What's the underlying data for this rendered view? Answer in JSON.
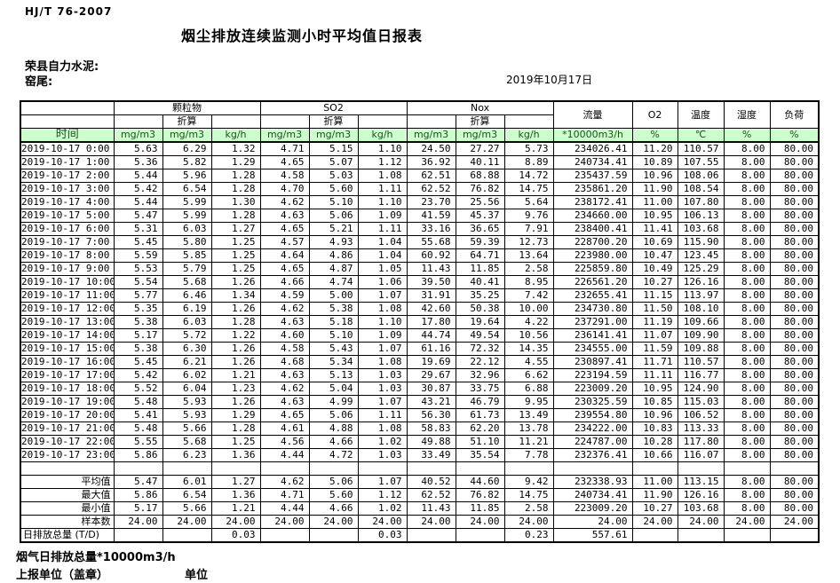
{
  "meta": {
    "standard": "HJ/T  76-2007",
    "title": "烟尘排放连续监测小时平均值日报表",
    "company": "荣县自力水泥:",
    "location": "窑尾:",
    "date": "2019年10月17日"
  },
  "table": {
    "time_label": "时间",
    "converted_label": "折算",
    "groups": [
      "颗粒物",
      "SO2",
      "Nox"
    ],
    "single_cols": [
      "流量",
      "O2",
      "温度",
      "湿度",
      "负荷"
    ],
    "units": [
      "mg/m3",
      "mg/m3",
      "kg/h",
      "mg/m3",
      "mg/m3",
      "kg/h",
      "mg/m3",
      "mg/m3",
      "kg/h",
      "*10000m3/h",
      "%",
      "℃",
      "%",
      "%"
    ],
    "rows": [
      {
        "time": "2019-10-17 0:00",
        "values": [
          "5.63",
          "6.29",
          "1.32",
          "4.71",
          "5.15",
          "1.10",
          "24.50",
          "27.27",
          "5.73",
          "234026.41",
          "11.20",
          "110.57",
          "8.00",
          "80.00"
        ]
      },
      {
        "time": "2019-10-17 1:00",
        "values": [
          "5.36",
          "5.82",
          "1.29",
          "4.65",
          "5.07",
          "1.12",
          "36.92",
          "40.11",
          "8.89",
          "240734.41",
          "10.89",
          "107.55",
          "8.00",
          "80.00"
        ]
      },
      {
        "time": "2019-10-17 2:00",
        "values": [
          "5.44",
          "5.96",
          "1.28",
          "4.58",
          "5.03",
          "1.08",
          "62.51",
          "68.88",
          "14.72",
          "235437.59",
          "10.96",
          "108.06",
          "8.00",
          "80.00"
        ]
      },
      {
        "time": "2019-10-17 3:00",
        "values": [
          "5.42",
          "6.54",
          "1.28",
          "4.70",
          "5.60",
          "1.11",
          "62.52",
          "76.82",
          "14.75",
          "235861.20",
          "11.90",
          "108.54",
          "8.00",
          "80.00"
        ]
      },
      {
        "time": "2019-10-17 4:00",
        "values": [
          "5.44",
          "5.99",
          "1.30",
          "4.62",
          "5.10",
          "1.10",
          "23.70",
          "25.56",
          "5.64",
          "238172.41",
          "11.00",
          "107.80",
          "8.00",
          "80.00"
        ]
      },
      {
        "time": "2019-10-17 5:00",
        "values": [
          "5.47",
          "5.99",
          "1.28",
          "4.63",
          "5.06",
          "1.09",
          "41.59",
          "45.37",
          "9.76",
          "234660.00",
          "10.95",
          "106.13",
          "8.00",
          "80.00"
        ]
      },
      {
        "time": "2019-10-17 6:00",
        "values": [
          "5.31",
          "6.03",
          "1.27",
          "4.65",
          "5.21",
          "1.11",
          "33.16",
          "36.65",
          "7.91",
          "238400.41",
          "11.41",
          "103.68",
          "8.00",
          "80.00"
        ]
      },
      {
        "time": "2019-10-17 7:00",
        "values": [
          "5.45",
          "5.80",
          "1.25",
          "4.57",
          "4.93",
          "1.04",
          "55.68",
          "59.39",
          "12.73",
          "228700.20",
          "10.69",
          "115.90",
          "8.00",
          "80.00"
        ]
      },
      {
        "time": "2019-10-17 8:00",
        "values": [
          "5.59",
          "5.85",
          "1.25",
          "4.64",
          "4.86",
          "1.04",
          "60.92",
          "64.71",
          "13.64",
          "223980.00",
          "10.47",
          "123.45",
          "8.00",
          "80.00"
        ]
      },
      {
        "time": "2019-10-17 9:00",
        "values": [
          "5.53",
          "5.79",
          "1.25",
          "4.65",
          "4.87",
          "1.05",
          "11.43",
          "11.85",
          "2.58",
          "225859.80",
          "10.49",
          "125.29",
          "8.00",
          "80.00"
        ]
      },
      {
        "time": "2019-10-17 10:00",
        "values": [
          "5.54",
          "5.68",
          "1.26",
          "4.66",
          "4.74",
          "1.06",
          "39.50",
          "40.41",
          "8.95",
          "226561.20",
          "10.27",
          "126.16",
          "8.00",
          "80.00"
        ]
      },
      {
        "time": "2019-10-17 11:00",
        "values": [
          "5.77",
          "6.46",
          "1.34",
          "4.59",
          "5.00",
          "1.07",
          "31.91",
          "35.25",
          "7.42",
          "232655.41",
          "11.15",
          "113.97",
          "8.00",
          "80.00"
        ]
      },
      {
        "time": "2019-10-17 12:00",
        "values": [
          "5.35",
          "6.19",
          "1.26",
          "4.62",
          "5.38",
          "1.08",
          "42.60",
          "50.38",
          "10.00",
          "234730.80",
          "11.50",
          "108.10",
          "8.00",
          "80.00"
        ]
      },
      {
        "time": "2019-10-17 13:00",
        "values": [
          "5.38",
          "6.03",
          "1.28",
          "4.63",
          "5.18",
          "1.10",
          "17.80",
          "19.64",
          "4.22",
          "237291.00",
          "11.19",
          "109.66",
          "8.00",
          "80.00"
        ]
      },
      {
        "time": "2019-10-17 14:00",
        "values": [
          "5.17",
          "5.72",
          "1.22",
          "4.60",
          "5.10",
          "1.09",
          "44.74",
          "49.54",
          "10.56",
          "236141.41",
          "11.07",
          "109.90",
          "8.00",
          "80.00"
        ]
      },
      {
        "time": "2019-10-17 15:00",
        "values": [
          "5.38",
          "6.30",
          "1.26",
          "4.58",
          "5.43",
          "1.07",
          "61.16",
          "72.32",
          "14.35",
          "234555.00",
          "11.59",
          "109.88",
          "8.00",
          "80.00"
        ]
      },
      {
        "time": "2019-10-17 16:00",
        "values": [
          "5.45",
          "6.21",
          "1.26",
          "4.68",
          "5.34",
          "1.08",
          "19.69",
          "22.12",
          "4.55",
          "230897.41",
          "11.71",
          "110.57",
          "8.00",
          "80.00"
        ]
      },
      {
        "time": "2019-10-17 17:00",
        "values": [
          "5.42",
          "6.02",
          "1.21",
          "4.63",
          "5.13",
          "1.03",
          "29.67",
          "32.96",
          "6.62",
          "223194.59",
          "11.11",
          "116.77",
          "8.00",
          "80.00"
        ]
      },
      {
        "time": "2019-10-17 18:00",
        "values": [
          "5.52",
          "6.04",
          "1.23",
          "4.62",
          "5.04",
          "1.03",
          "30.87",
          "33.75",
          "6.88",
          "223009.20",
          "10.95",
          "124.90",
          "8.00",
          "80.00"
        ]
      },
      {
        "time": "2019-10-17 19:00",
        "values": [
          "5.48",
          "5.93",
          "1.26",
          "4.63",
          "4.99",
          "1.07",
          "43.21",
          "46.79",
          "9.95",
          "230325.59",
          "10.85",
          "115.03",
          "8.00",
          "80.00"
        ]
      },
      {
        "time": "2019-10-17 20:00",
        "values": [
          "5.41",
          "5.93",
          "1.29",
          "4.65",
          "5.06",
          "1.11",
          "56.30",
          "61.73",
          "13.49",
          "239554.80",
          "10.96",
          "106.52",
          "8.00",
          "80.00"
        ]
      },
      {
        "time": "2019-10-17 21:00",
        "values": [
          "5.48",
          "5.66",
          "1.28",
          "4.61",
          "4.88",
          "1.08",
          "58.83",
          "62.20",
          "13.78",
          "234222.00",
          "10.83",
          "113.33",
          "8.00",
          "80.00"
        ]
      },
      {
        "time": "2019-10-17 22:00",
        "values": [
          "5.55",
          "5.68",
          "1.25",
          "4.56",
          "4.66",
          "1.02",
          "49.88",
          "51.10",
          "11.21",
          "224787.00",
          "10.28",
          "117.80",
          "8.00",
          "80.00"
        ]
      },
      {
        "time": "2019-10-17 23:00",
        "values": [
          "5.86",
          "6.23",
          "1.36",
          "4.44",
          "4.72",
          "1.03",
          "33.49",
          "35.54",
          "7.78",
          "232376.41",
          "10.66",
          "116.07",
          "8.00",
          "80.00"
        ]
      }
    ],
    "summary": [
      {
        "label": "平均值",
        "values": [
          "5.47",
          "6.01",
          "1.27",
          "4.62",
          "5.06",
          "1.07",
          "40.52",
          "44.60",
          "9.42",
          "232338.93",
          "11.00",
          "113.15",
          "8.00",
          "80.00"
        ]
      },
      {
        "label": "最大值",
        "values": [
          "5.86",
          "6.54",
          "1.36",
          "4.71",
          "5.60",
          "1.12",
          "62.52",
          "76.82",
          "14.75",
          "240734.41",
          "11.90",
          "126.16",
          "8.00",
          "80.00"
        ]
      },
      {
        "label": "最小值",
        "values": [
          "5.17",
          "5.66",
          "1.21",
          "4.44",
          "4.66",
          "1.02",
          "11.43",
          "11.85",
          "2.58",
          "223009.20",
          "10.27",
          "103.68",
          "8.00",
          "80.00"
        ]
      },
      {
        "label": "样本数",
        "values": [
          "24.00",
          "24.00",
          "24.00",
          "24.00",
          "24.00",
          "24.00",
          "24.00",
          "24.00",
          "24.00",
          "24.00",
          "24.00",
          "24.00",
          "24.00",
          "24.00"
        ]
      },
      {
        "label": "日排放总量 (T/D)",
        "label_align": "left",
        "values": [
          "",
          "",
          "0.03",
          "",
          "",
          "0.03",
          "",
          "",
          "0.23",
          "557.61",
          "",
          "",
          "",
          ""
        ]
      }
    ]
  },
  "footer": {
    "line1": "烟气日排放总量*10000m3/h",
    "line2_left": "上报单位（盖章）",
    "line2_right": "单位"
  },
  "colors": {
    "header_green_bg": "#ccffcc",
    "header_green_text": "#1a5218",
    "border": "#000000"
  }
}
